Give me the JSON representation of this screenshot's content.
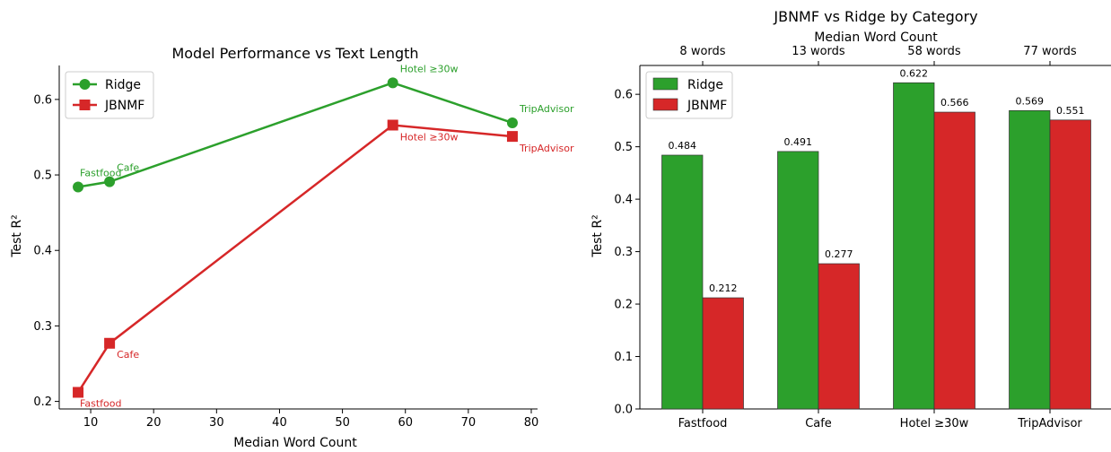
{
  "chart_data": [
    {
      "type": "line",
      "title": "Model Performance vs Text Length",
      "xlabel": "Median Word Count",
      "ylabel": "Test R²",
      "xlim": [
        5,
        81
      ],
      "ylim": [
        0.19,
        0.645
      ],
      "xticks": [
        10,
        20,
        30,
        40,
        50,
        60,
        70,
        80
      ],
      "yticks": [
        0.2,
        0.3,
        0.4,
        0.5,
        0.6
      ],
      "legend_position": "top-left",
      "series": [
        {
          "name": "Ridge",
          "color": "#2ca02c",
          "marker": "circle",
          "x": [
            8,
            13,
            58,
            77
          ],
          "y": [
            0.484,
            0.491,
            0.622,
            0.569
          ],
          "labels": [
            "Fastfood",
            "Cafe",
            "Hotel ≥30w",
            "TripAdvisor"
          ]
        },
        {
          "name": "JBNMF",
          "color": "#d62728",
          "marker": "square",
          "x": [
            8,
            13,
            58,
            77
          ],
          "y": [
            0.212,
            0.277,
            0.566,
            0.551
          ],
          "labels": [
            "Fastfood",
            "Cafe",
            "Hotel ≥30w",
            "TripAdvisor"
          ]
        }
      ]
    },
    {
      "type": "bar",
      "title": "JBNMF vs Ridge by Category",
      "ylabel": "Test R²",
      "top_xlabel": "Median Word Count",
      "top_ticklabels": [
        "8 words",
        "13 words",
        "58 words",
        "77 words"
      ],
      "categories": [
        "Fastfood",
        "Cafe",
        "Hotel ≥30w",
        "TripAdvisor"
      ],
      "ylim": [
        0,
        0.655
      ],
      "yticks": [
        0.0,
        0.1,
        0.2,
        0.3,
        0.4,
        0.5,
        0.6
      ],
      "legend_position": "top-left",
      "series": [
        {
          "name": "Ridge",
          "color": "#2ca02c",
          "values": [
            0.484,
            0.491,
            0.622,
            0.569
          ],
          "value_labels": [
            "0.484",
            "0.491",
            "0.622",
            "0.569"
          ]
        },
        {
          "name": "JBNMF",
          "color": "#d62728",
          "values": [
            0.212,
            0.277,
            0.566,
            0.551
          ],
          "value_labels": [
            "0.212",
            "0.277",
            "0.566",
            "0.551"
          ]
        }
      ]
    }
  ]
}
